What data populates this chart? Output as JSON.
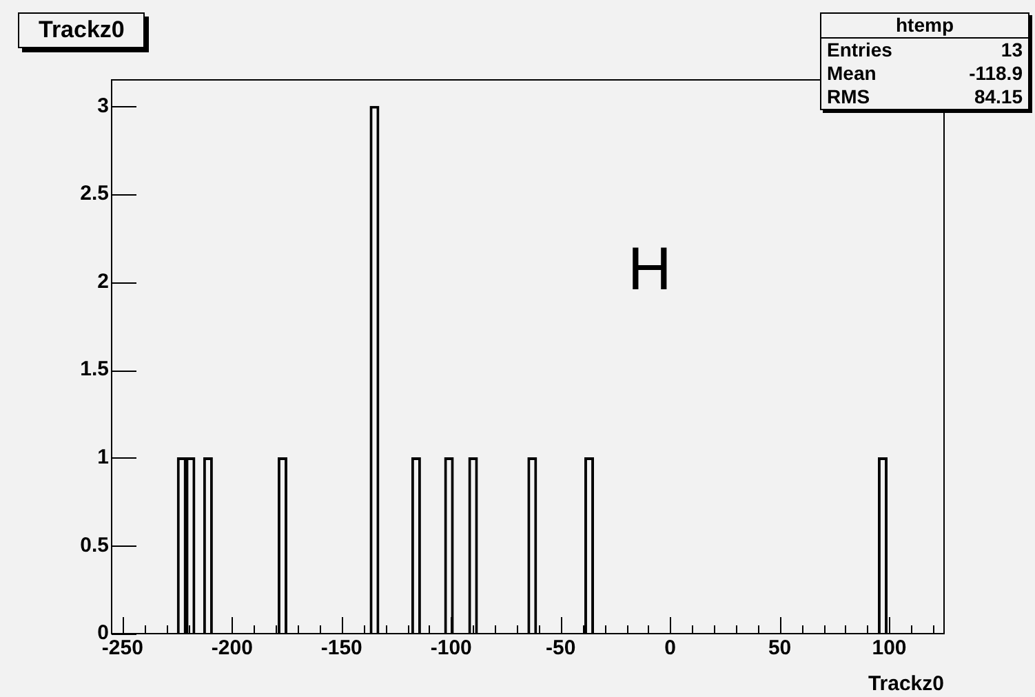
{
  "chart_data": {
    "type": "bar",
    "title": "Trackz0",
    "xlabel": "Trackz0",
    "x": [
      -223,
      -219,
      -211,
      -177,
      -135,
      -116,
      -101,
      -90,
      -63,
      -37,
      97
    ],
    "values": [
      1,
      1,
      1,
      1,
      3,
      1,
      1,
      1,
      1,
      1,
      1
    ],
    "color": "#000000",
    "xlim": [
      -255,
      125
    ],
    "xticks": [
      -250,
      {
        "value": -240,
        "label": null
      },
      {
        "value": -230,
        "label": null
      },
      {
        "value": -220,
        "label": null
      },
      {
        "value": -210,
        "label": null
      },
      -200,
      {
        "value": -190,
        "label": null
      },
      {
        "value": -180,
        "label": null
      },
      {
        "value": -170,
        "label": null
      },
      {
        "value": -160,
        "label": null
      },
      -150,
      {
        "value": -140,
        "label": null
      },
      {
        "value": -130,
        "label": null
      },
      {
        "value": -120,
        "label": null
      },
      {
        "value": -110,
        "label": null
      },
      -100,
      {
        "value": -90,
        "label": null
      },
      {
        "value": -80,
        "label": null
      },
      {
        "value": -70,
        "label": null
      },
      {
        "value": -60,
        "label": null
      },
      -50,
      {
        "value": -40,
        "label": null
      },
      {
        "value": -30,
        "label": null
      },
      {
        "value": -20,
        "label": null
      },
      {
        "value": -10,
        "label": null
      },
      0,
      {
        "value": 10,
        "label": null
      },
      {
        "value": 20,
        "label": null
      },
      {
        "value": 30,
        "label": null
      },
      {
        "value": 40,
        "label": null
      },
      50,
      {
        "value": 60,
        "label": null
      },
      {
        "value": 70,
        "label": null
      },
      {
        "value": 80,
        "label": null
      },
      {
        "value": 90,
        "label": null
      },
      100,
      {
        "value": 110,
        "label": null
      },
      {
        "value": 120,
        "label": null
      }
    ],
    "ylim": [
      0,
      3.15
    ],
    "yticks": [
      0,
      0.5,
      1,
      1.5,
      2,
      2.5,
      3
    ],
    "grid": false,
    "legend": false,
    "annotations": [
      "htemp",
      "Entries 13",
      "Mean -118.9",
      "RMS 84.15",
      "H"
    ]
  }
}
